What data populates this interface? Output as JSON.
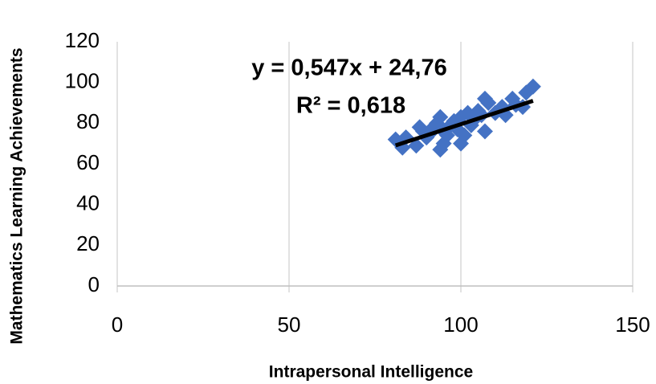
{
  "chart_data": {
    "type": "scatter",
    "xlabel": "Intrapersonal Intelligence",
    "ylabel": "Mathematics Learning Achievements",
    "annotations": [
      "y = 0,547x + 24,76",
      "R² = 0,618"
    ],
    "series": [
      {
        "color": "#4472c4",
        "x": [
          81,
          83,
          84,
          87,
          88,
          89,
          90,
          91,
          92,
          93,
          94,
          94,
          95,
          95,
          96,
          97,
          98,
          99,
          100,
          100,
          101,
          102,
          103,
          104,
          105,
          106,
          107,
          107,
          108,
          110,
          112,
          113,
          115,
          116,
          118,
          119,
          121
        ],
        "values": [
          72,
          68,
          73,
          69,
          78,
          76,
          73,
          75,
          78,
          80,
          83,
          67,
          70,
          76,
          74,
          79,
          81,
          77,
          70,
          83,
          74,
          85,
          79,
          82,
          86,
          84,
          76,
          92,
          90,
          85,
          88,
          84,
          92,
          89,
          88,
          95,
          98
        ]
      }
    ],
    "trendline": {
      "color": "#000000",
      "x": [
        81,
        121
      ],
      "values": [
        69.1,
        91.0
      ]
    },
    "xlim": [
      0,
      150
    ],
    "xticks": [
      0,
      50,
      100,
      150
    ],
    "ylim": [
      0,
      120
    ],
    "yticks": [
      0,
      20,
      40,
      60,
      80,
      100,
      120
    ]
  }
}
